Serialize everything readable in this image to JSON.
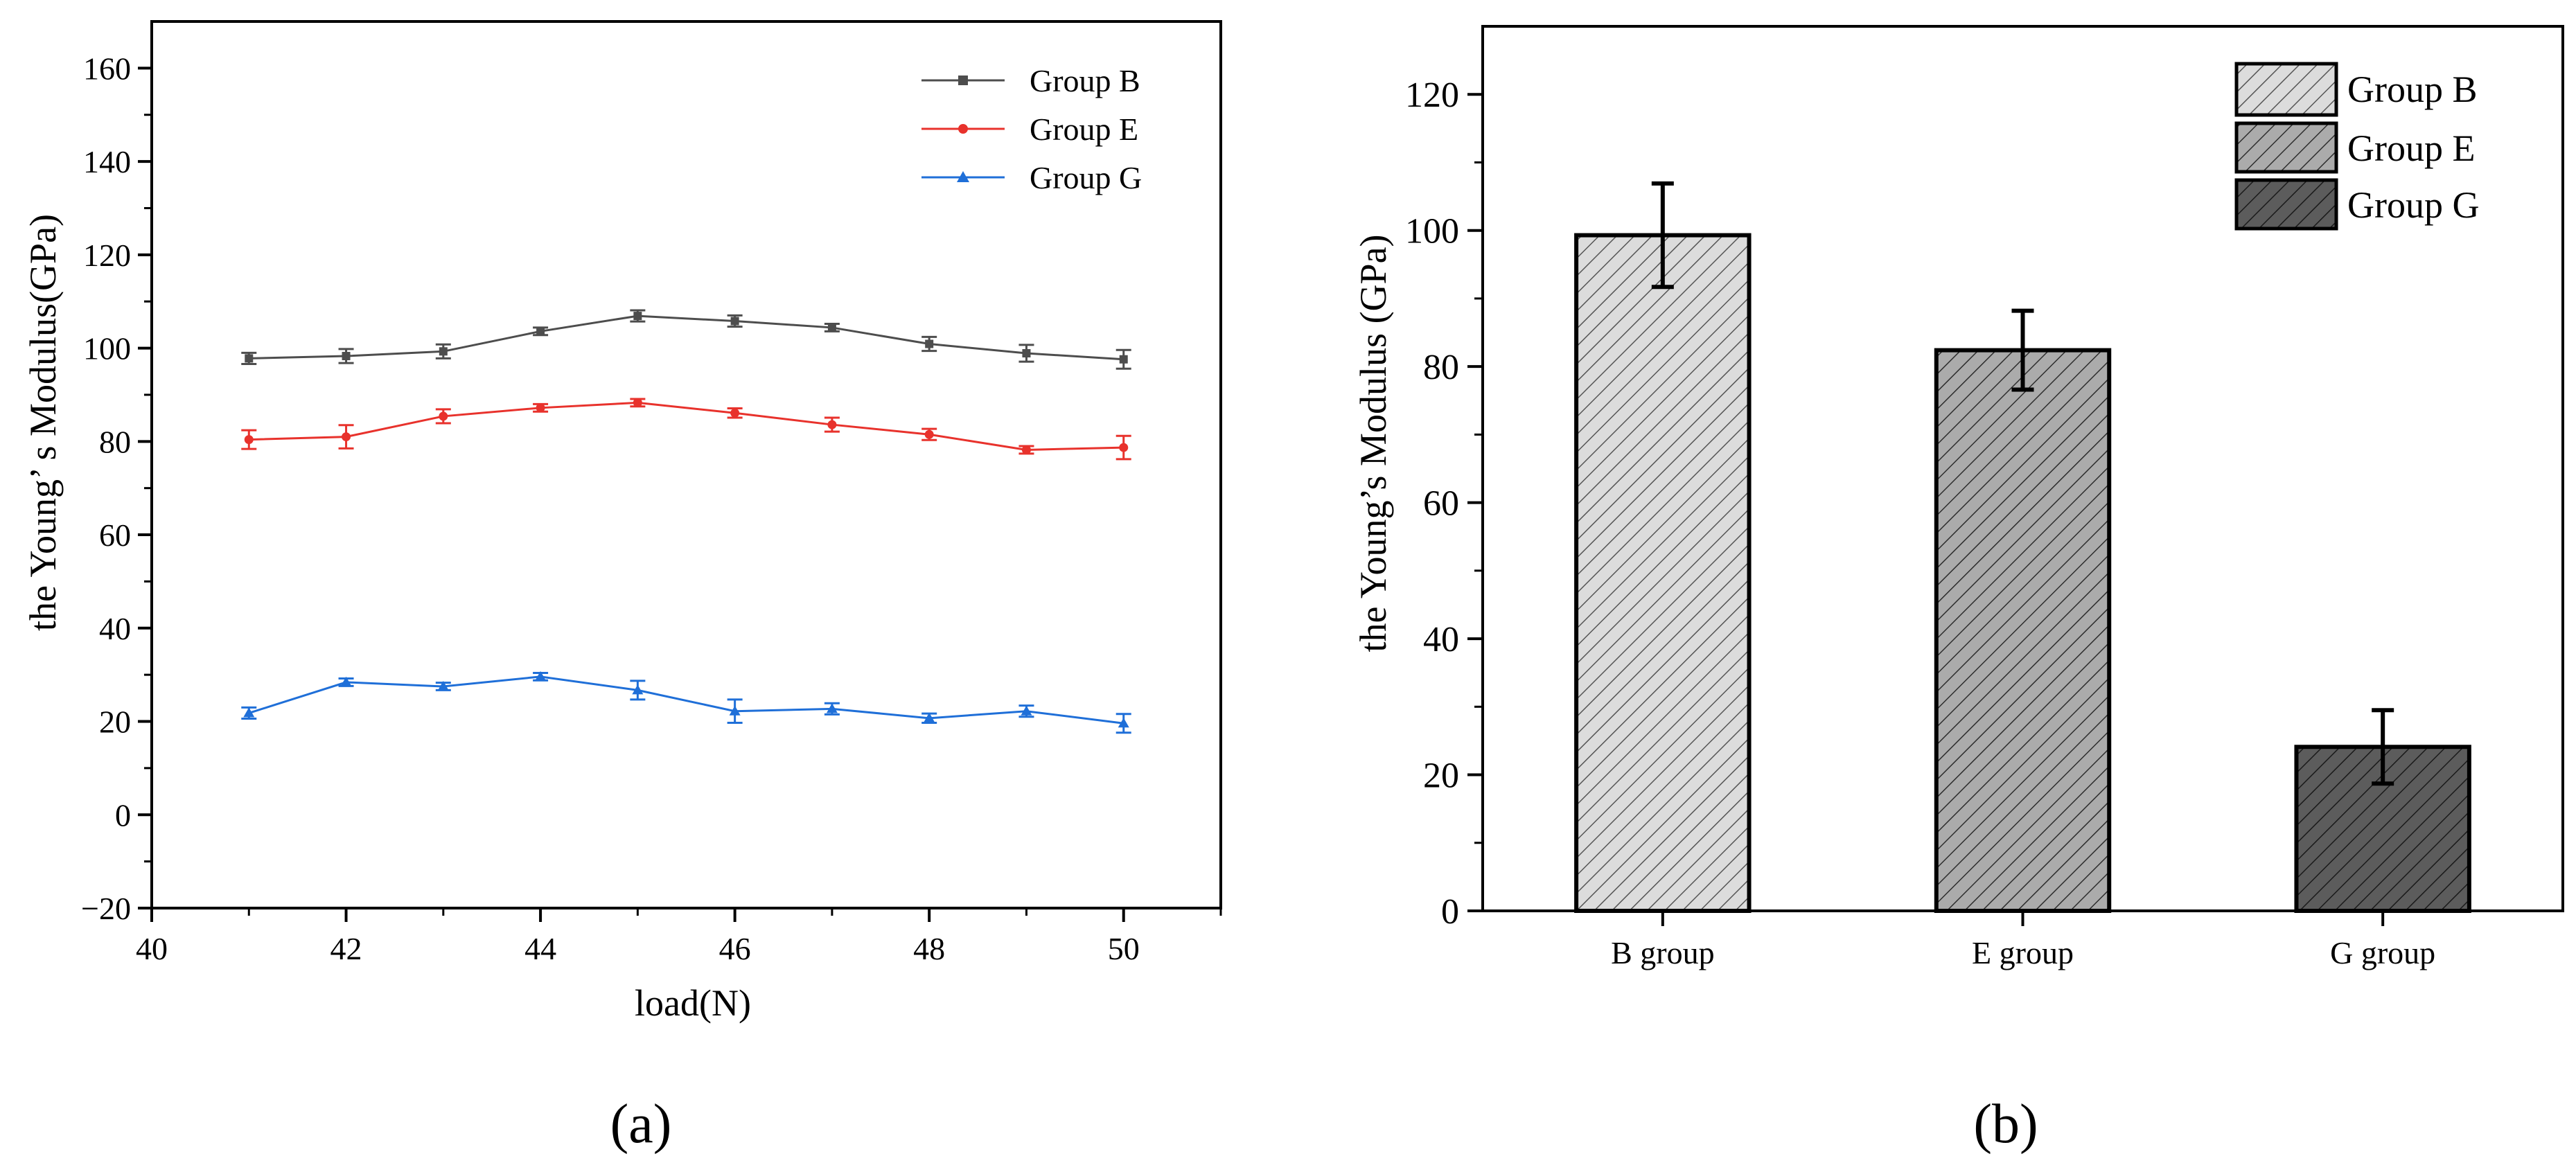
{
  "panel_a": {
    "caption": "(a)",
    "legend": [
      "Group B",
      "Group E",
      "Group G"
    ],
    "chart_data": {
      "type": "line",
      "title": "",
      "xlabel": "load(N)",
      "ylabel": "the Young’ s Modulus(GPa)",
      "xlim": [
        40,
        51
      ],
      "ylim": [
        -20,
        170
      ],
      "x_ticks": [
        40,
        42,
        44,
        46,
        48,
        50
      ],
      "y_ticks": [
        -20,
        0,
        20,
        40,
        60,
        80,
        100,
        120,
        140,
        160
      ],
      "x_tick_labels": [
        "40",
        "42",
        "44",
        "46",
        "48",
        "50"
      ],
      "y_tick_labels": [
        "−20",
        "0",
        "20",
        "40",
        "60",
        "80",
        "100",
        "120",
        "140",
        "160"
      ],
      "legend_position": "top-right",
      "grid": false,
      "x": [
        41,
        42,
        43,
        44,
        45,
        46,
        47,
        48,
        49,
        50
      ],
      "series": [
        {
          "name": "Group B",
          "color": "#4d4d4d",
          "marker": "square",
          "values": [
            97.8,
            98.3,
            99.3,
            103.6,
            106.9,
            105.8,
            104.4,
            100.9,
            98.9,
            97.6
          ],
          "errors": [
            1.2,
            1.5,
            1.5,
            0.8,
            1.2,
            1.2,
            0.8,
            1.5,
            1.8,
            2.0
          ]
        },
        {
          "name": "Group E",
          "color": "#e8322c",
          "marker": "circle",
          "values": [
            80.4,
            81.0,
            85.4,
            87.2,
            88.3,
            86.1,
            83.6,
            81.5,
            78.2,
            78.7
          ],
          "errors": [
            2.0,
            2.5,
            1.5,
            0.8,
            0.8,
            1.0,
            1.5,
            1.2,
            0.8,
            2.5
          ]
        },
        {
          "name": "Group G",
          "color": "#1f6fd8",
          "marker": "triangle",
          "values": [
            21.8,
            28.4,
            27.5,
            29.6,
            26.7,
            22.2,
            22.7,
            20.7,
            22.2,
            19.6
          ],
          "errors": [
            1.2,
            0.8,
            0.8,
            0.8,
            2.0,
            2.5,
            1.2,
            1.0,
            1.2,
            2.0
          ]
        }
      ]
    }
  },
  "panel_b": {
    "caption": "(b)",
    "legend": [
      "Group B",
      "Group E",
      "Group G"
    ],
    "chart_data": {
      "type": "bar",
      "title": "",
      "xlabel": "",
      "ylabel": "the Young’s Modulus (GPa)",
      "ylim": [
        0,
        130
      ],
      "y_ticks": [
        0,
        20,
        40,
        60,
        80,
        100,
        120
      ],
      "y_tick_labels": [
        "0",
        "20",
        "40",
        "60",
        "80",
        "100",
        "120"
      ],
      "legend_position": "top-right",
      "grid": false,
      "categories": [
        "B group",
        "E group",
        "G group"
      ],
      "values": [
        99.3,
        82.4,
        24.1
      ],
      "errors": [
        7.6,
        5.8,
        5.4
      ],
      "fill_colors": [
        "#dcdcdc",
        "#ababab",
        "#5c5c5c"
      ],
      "hatch": "diagonal"
    }
  }
}
